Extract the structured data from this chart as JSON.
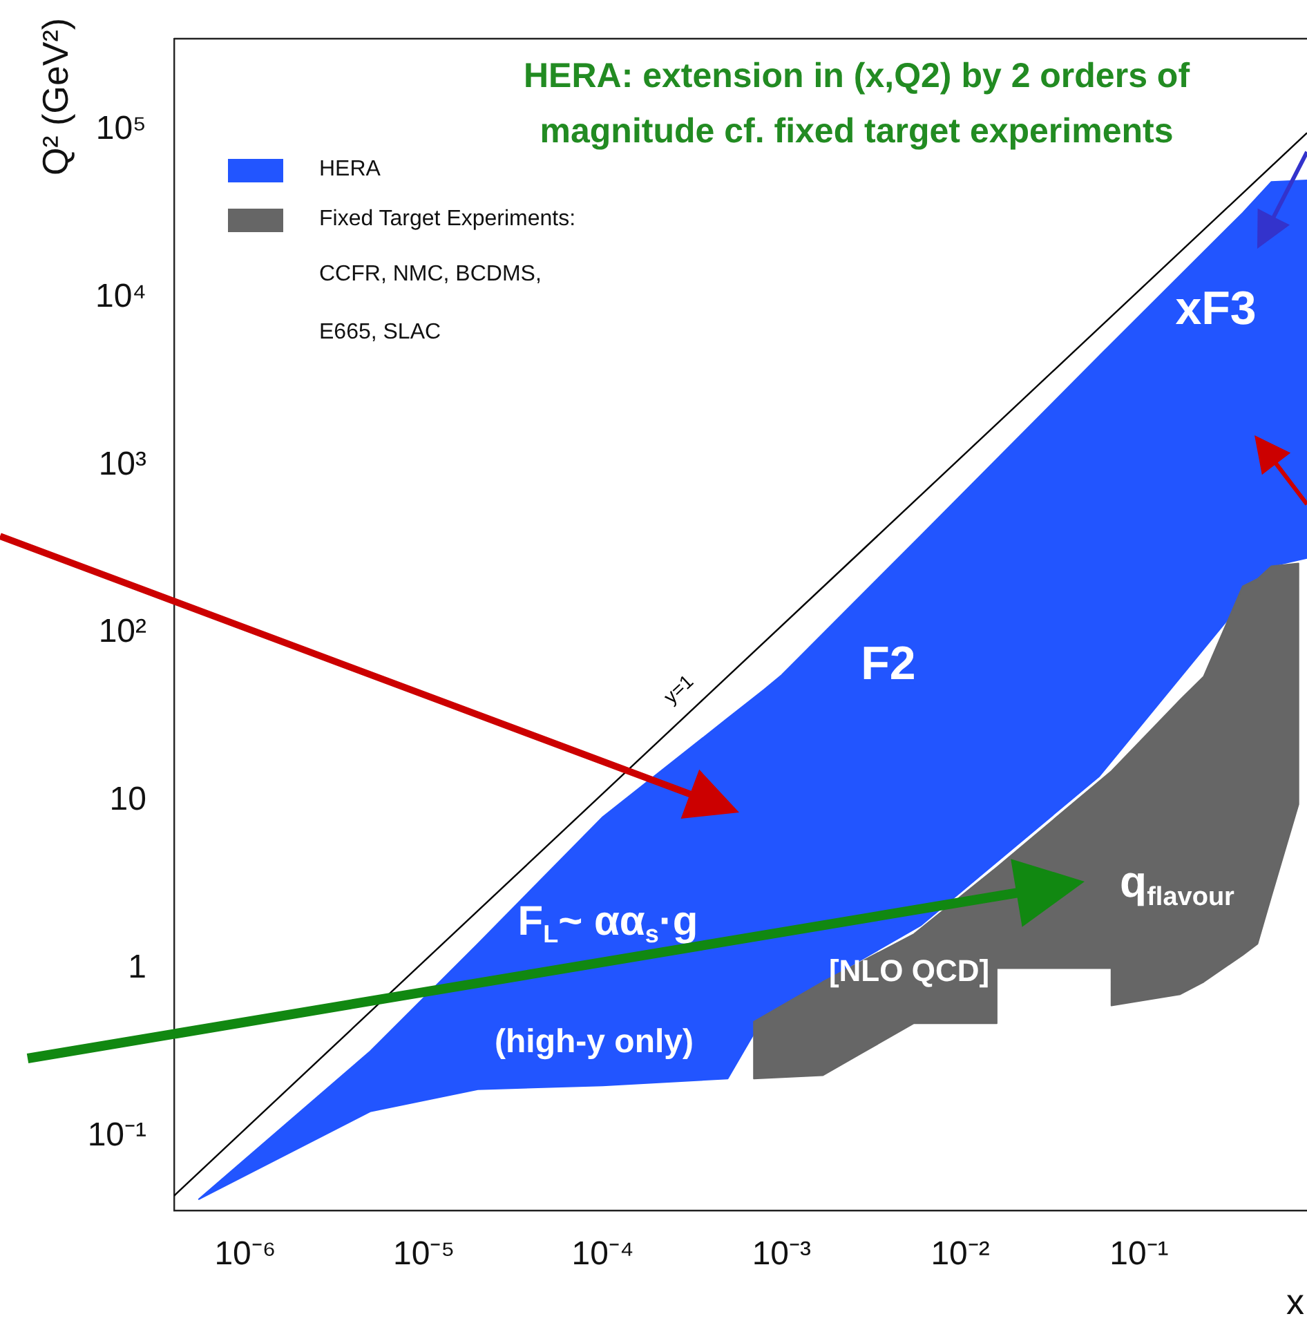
{
  "chart_data": {
    "type": "area",
    "title": "HERA: extension in (x,Q2) by 2 orders of magnitude cf. fixed target experiments",
    "xlabel": "x",
    "ylabel": "Q² (GeV²)",
    "log": "xy",
    "legend": "top left",
    "grid": false,
    "xlim": [
      4e-07,
      0.87
    ],
    "ylim": [
      0.036,
      350000
    ],
    "xticks": [
      {
        "value": 1e-06,
        "label": "10⁻⁶"
      },
      {
        "value": 1e-05,
        "label": "10⁻⁵"
      },
      {
        "value": 0.0001,
        "label": "10⁻⁴"
      },
      {
        "value": 0.001,
        "label": "10⁻³"
      },
      {
        "value": 0.01,
        "label": "10⁻²"
      },
      {
        "value": 0.1,
        "label": "10⁻¹"
      }
    ],
    "yticks": [
      {
        "value": 0.1,
        "label": "10⁻¹"
      },
      1,
      10,
      {
        "value": 100,
        "label": "10²"
      },
      {
        "value": 1000,
        "label": "10³"
      },
      {
        "value": 10000,
        "label": "10⁴"
      },
      {
        "value": 100000,
        "label": "10⁵"
      }
    ],
    "series": [
      {
        "name": "HERA",
        "color": "#2255ff",
        "x": [
          5.5e-07,
          5e-06,
          2e-05,
          0.0001,
          0.0005,
          0.0008,
          0.001,
          0.006,
          0.06,
          0.38,
          0.55,
          0.87,
          0.87,
          0.55,
          0.38,
          0.06,
          0.006,
          0.001,
          0.0008,
          0.0005,
          0.0001,
          2e-05,
          5e-06
        ],
        "values": [
          0.042,
          0.32,
          1.4,
          8,
          31,
          46,
          56,
          380,
          4500,
          32000,
          49000,
          50000,
          280,
          250,
          null,
          14,
          1.8,
          0.6,
          0.52,
          0.22,
          0.2,
          0.19,
          0.14
        ]
      },
      {
        "name": "Fixed Target Experiments:",
        "color": "#666666",
        "x": [
          0.0007,
          0.0017,
          0.0055,
          0.016,
          0.07,
          0.17,
          0.23,
          0.38,
          0.46,
          0.55,
          0.78,
          0.78,
          0.55,
          0.46,
          0.38,
          0.23,
          0.17,
          0.07,
          0.07,
          0.016,
          0.016,
          0.0055,
          0.0017,
          0.0007
        ],
        "values": [
          0.48,
          0.83,
          1.6,
          4,
          15,
          40,
          55,
          190,
          210,
          250,
          260,
          9.5,
          2.7,
          1.4,
          1.2,
          0.83,
          0.7,
          0.6,
          1,
          1,
          0.47,
          0.47,
          0.23,
          0.22
        ]
      },
      {
        "name": "y=1",
        "type": "line",
        "color": "#000000",
        "x": [
          4e-07,
          0.87
        ],
        "values": [
          0.044,
          96000
        ]
      }
    ],
    "annotations": [
      "CCFR, NMC, BCDMS,",
      "E665, SLAC",
      "xF3",
      "F2",
      "F$_{L}$~ αα$_{s}$·g",
      "[NLO QCD]",
      "(high-y only)",
      "q$_{flavour}$"
    ]
  }
}
